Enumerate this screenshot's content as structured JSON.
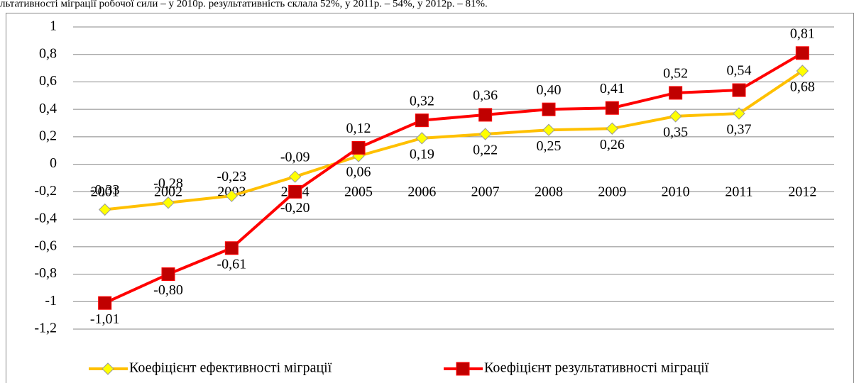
{
  "caption": "льтативності міграції робочої сили – у 2010р. результативність склала 52%, у 2011р. – 54%, у 2012р. – 81%.",
  "chart_data": {
    "type": "line",
    "categories": [
      "2001",
      "2002",
      "2003",
      "2004",
      "2005",
      "2006",
      "2007",
      "2008",
      "2009",
      "2010",
      "2011",
      "2012"
    ],
    "series": [
      {
        "name": "Коефіцієнт ефективності міграції",
        "color": "#ffc000",
        "marker_color": "#ffff00",
        "values": [
          -0.33,
          -0.28,
          -0.23,
          -0.09,
          0.06,
          0.19,
          0.22,
          0.25,
          0.26,
          0.35,
          0.37,
          0.68
        ],
        "value_labels": [
          "-0,33",
          "-0,28",
          "-0,23",
          "-0,09",
          "0,06",
          "0,19",
          "0,22",
          "0,25",
          "0,26",
          "0,35",
          "0,37",
          "0,68"
        ]
      },
      {
        "name": "Коефіцієнт результативності міграції",
        "color": "#ff0000",
        "marker_color": "#c00000",
        "values": [
          -1.01,
          -0.8,
          -0.61,
          -0.2,
          0.12,
          0.32,
          0.36,
          0.4,
          0.41,
          0.52,
          0.54,
          0.81
        ],
        "value_labels": [
          "-1,01",
          "-0,80",
          "-0,61",
          "-0,20",
          "0,12",
          "0,32",
          "0,36",
          "0,40",
          "0,41",
          "0,52",
          "0,54",
          "0,81"
        ]
      }
    ],
    "ylim": [
      -1.2,
      1
    ],
    "yticks": [
      1,
      {
        "value": 0.8,
        "label": "0,8"
      },
      {
        "value": 0.6,
        "label": "0,6"
      },
      {
        "value": 0.4,
        "label": "0,4"
      },
      {
        "value": 0.2,
        "label": "0,2"
      },
      0,
      {
        "value": -0.2,
        "label": "-0,2"
      },
      {
        "value": -0.4,
        "label": "-0,4"
      },
      {
        "value": -0.6,
        "label": "-0,6"
      },
      {
        "value": -0.8,
        "label": "-0,8"
      },
      -1,
      {
        "value": -1.2,
        "label": "-1,2"
      }
    ],
    "grid": true
  }
}
